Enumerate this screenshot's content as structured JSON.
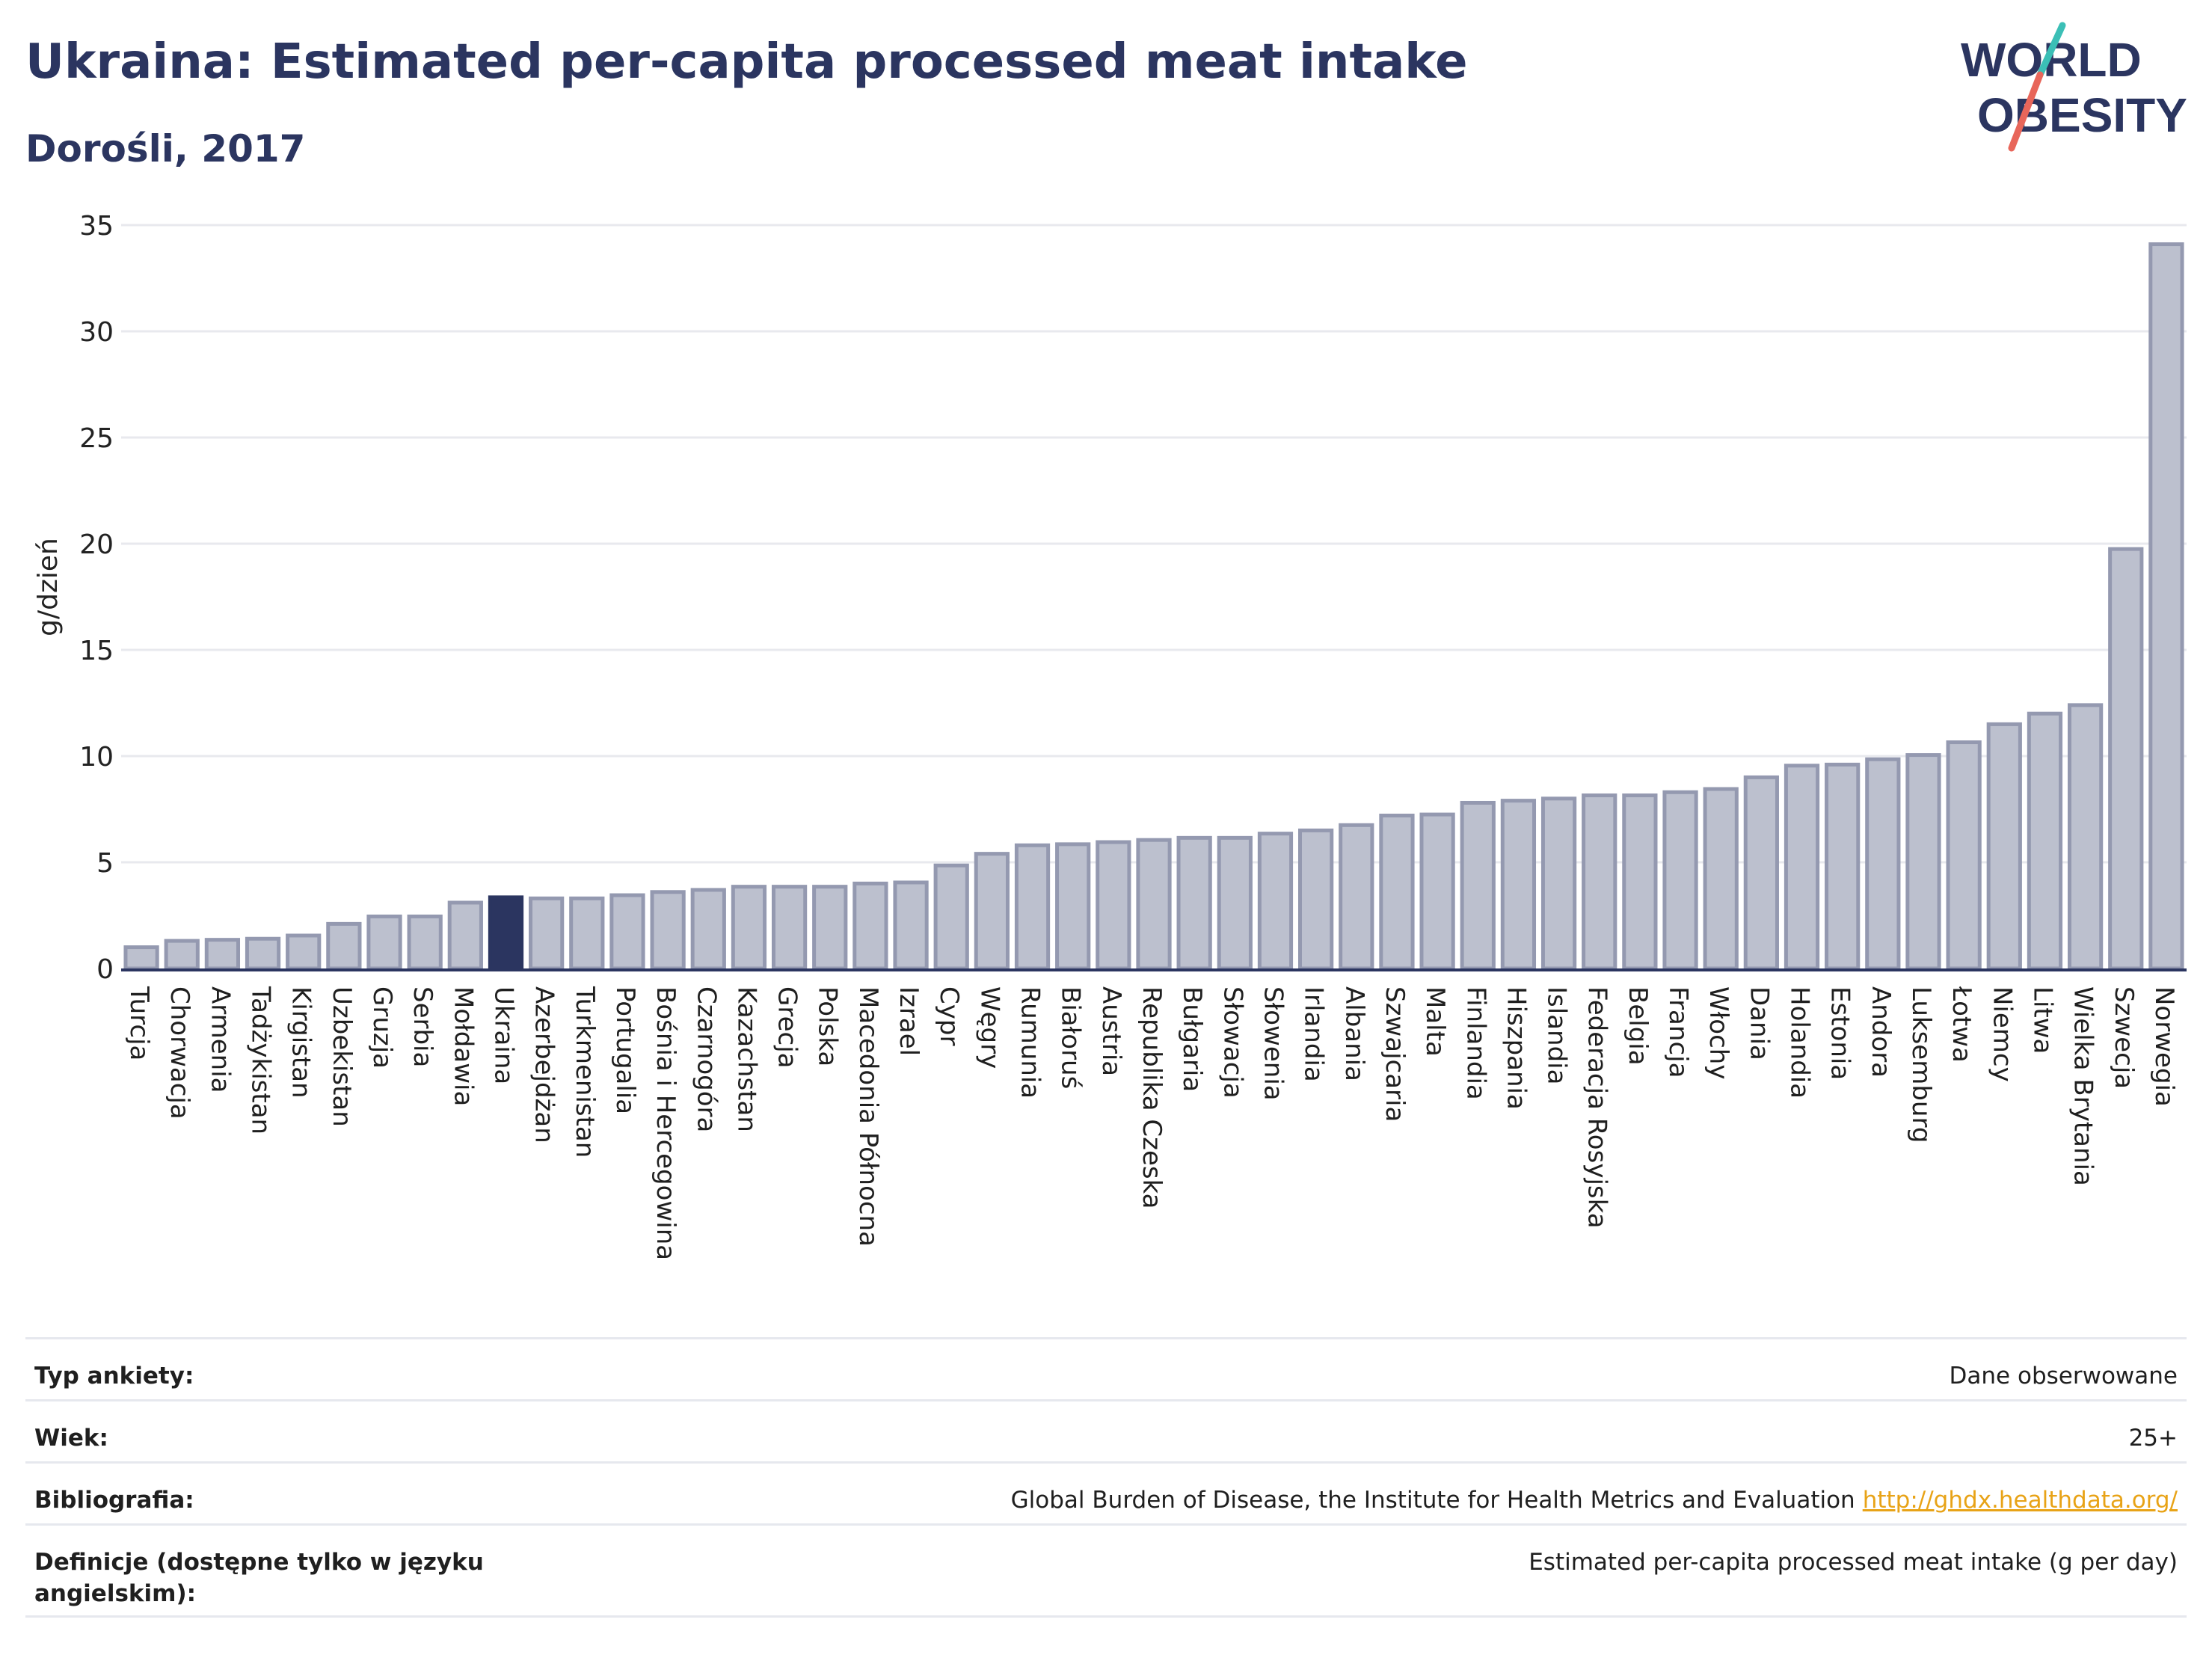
{
  "header": {
    "title": "Ukraina: Estimated per-capita processed meat intake",
    "subtitle": "Dorośli, 2017"
  },
  "logo": {
    "line1": "WORLD",
    "line2": "OBESITY",
    "accent_teal": "#3bbfb6",
    "accent_red": "#e8665a",
    "text_color": "#2b3560"
  },
  "chart_data": {
    "type": "bar",
    "ylabel": "g/dzień",
    "ylim": [
      0,
      35
    ],
    "yticks": [
      0,
      5,
      10,
      15,
      20,
      25,
      30,
      35
    ],
    "grid": true,
    "highlight": "Ukraina",
    "bar_color": "#bcc0ce",
    "bar_edge_color": "#9499b0",
    "highlight_color": "#2b3560",
    "categories": [
      "Turcja",
      "Chorwacja",
      "Armenia",
      "Tadżykistan",
      "Kirgistan",
      "Uzbekistan",
      "Gruzja",
      "Serbia",
      "Mołdawia",
      "Ukraina",
      "Azerbejdżan",
      "Turkmenistan",
      "Portugalia",
      "Bośnia i Hercegowina",
      "Czarnogóra",
      "Kazachstan",
      "Grecja",
      "Polska",
      "Macedonia Północna",
      "Izrael",
      "Cypr",
      "Węgry",
      "Rumunia",
      "Białoruś",
      "Austria",
      "Republika Czeska",
      "Bułgaria",
      "Słowacja",
      "Słowenia",
      "Irlandia",
      "Albania",
      "Szwajcaria",
      "Malta",
      "Finlandia",
      "Hiszpania",
      "Islandia",
      "Federacja Rosyjska",
      "Belgia",
      "Francja",
      "Włochy",
      "Dania",
      "Holandia",
      "Estonia",
      "Andora",
      "Luksemburg",
      "Łotwa",
      "Niemcy",
      "Litwa",
      "Wielka Brytania",
      "Szwecja",
      "Norwegia"
    ],
    "values": [
      1.0,
      1.3,
      1.35,
      1.4,
      1.55,
      2.1,
      2.45,
      2.45,
      3.1,
      3.35,
      3.3,
      3.3,
      3.45,
      3.6,
      3.7,
      3.85,
      3.85,
      3.85,
      4.0,
      4.05,
      4.85,
      5.4,
      5.8,
      5.85,
      5.95,
      6.05,
      6.15,
      6.15,
      6.35,
      6.5,
      6.75,
      7.2,
      7.25,
      7.8,
      7.9,
      8.0,
      8.15,
      8.15,
      8.3,
      8.45,
      9.0,
      9.55,
      9.6,
      9.85,
      10.05,
      10.65,
      11.5,
      12.0,
      12.4,
      19.75,
      34.1
    ]
  },
  "meta": {
    "rows": [
      {
        "key": "Typ ankiety:",
        "value": "Dane obserwowane"
      },
      {
        "key": "Wiek:",
        "value": "25+"
      },
      {
        "key": "Bibliografia:",
        "value": "Global Burden of Disease, the Institute for Health Metrics and Evaluation",
        "link": "http://ghdx.healthdata.org/"
      },
      {
        "key": "Definicje (dostępne tylko w języku angielskim):",
        "value": "Estimated per-capita processed meat intake (g per day)"
      }
    ]
  }
}
